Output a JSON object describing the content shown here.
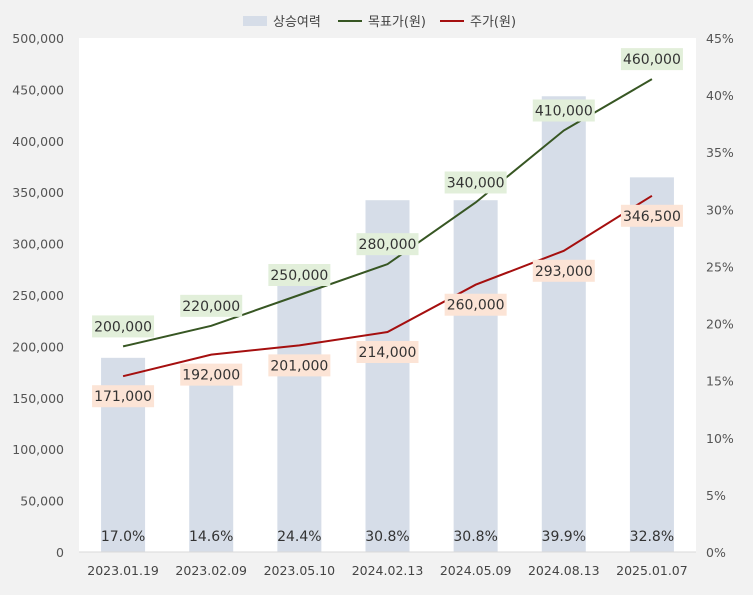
{
  "chart_data": {
    "type": "bar+line",
    "categories": [
      "2023.01.19",
      "2023.02.09",
      "2023.05.10",
      "2024.02.13",
      "2024.05.09",
      "2024.08.13",
      "2025.01.07"
    ],
    "series": [
      {
        "name": "상승여력",
        "type": "bar",
        "axis": "right",
        "values": [
          17.0,
          14.6,
          24.4,
          30.8,
          30.8,
          39.9,
          32.8
        ],
        "labels": [
          "17.0%",
          "14.6%",
          "24.4%",
          "30.8%",
          "30.8%",
          "39.9%",
          "32.8%"
        ],
        "color": "#d6dde8"
      },
      {
        "name": "목표가(원)",
        "type": "line",
        "axis": "left",
        "values": [
          200000,
          220000,
          250000,
          280000,
          340000,
          410000,
          460000
        ],
        "labels": [
          "200,000",
          "220,000",
          "250,000",
          "280,000",
          "340,000",
          "410,000",
          "460,000"
        ],
        "color": "#375623",
        "label_bg": "#e2efda"
      },
      {
        "name": "주가(원)",
        "type": "line",
        "axis": "left",
        "values": [
          171000,
          192000,
          201000,
          214000,
          260000,
          293000,
          346500
        ],
        "labels": [
          "171,000",
          "192,000",
          "201,000",
          "214,000",
          "260,000",
          "293,000",
          "346,500"
        ],
        "color": "#a50f0f",
        "label_bg": "#fce4d6"
      }
    ],
    "y_left": {
      "range": [
        0,
        500000
      ],
      "ticks": [
        "0",
        "50,000",
        "100,000",
        "150,000",
        "200,000",
        "250,000",
        "300,000",
        "350,000",
        "400,000",
        "450,000",
        "500,000"
      ]
    },
    "y_right": {
      "range": [
        0,
        45
      ],
      "ticks": [
        "0%",
        "5%",
        "10%",
        "15%",
        "20%",
        "25%",
        "30%",
        "35%",
        "40%",
        "45%"
      ]
    },
    "legend_position": "top-center",
    "grid": false
  }
}
